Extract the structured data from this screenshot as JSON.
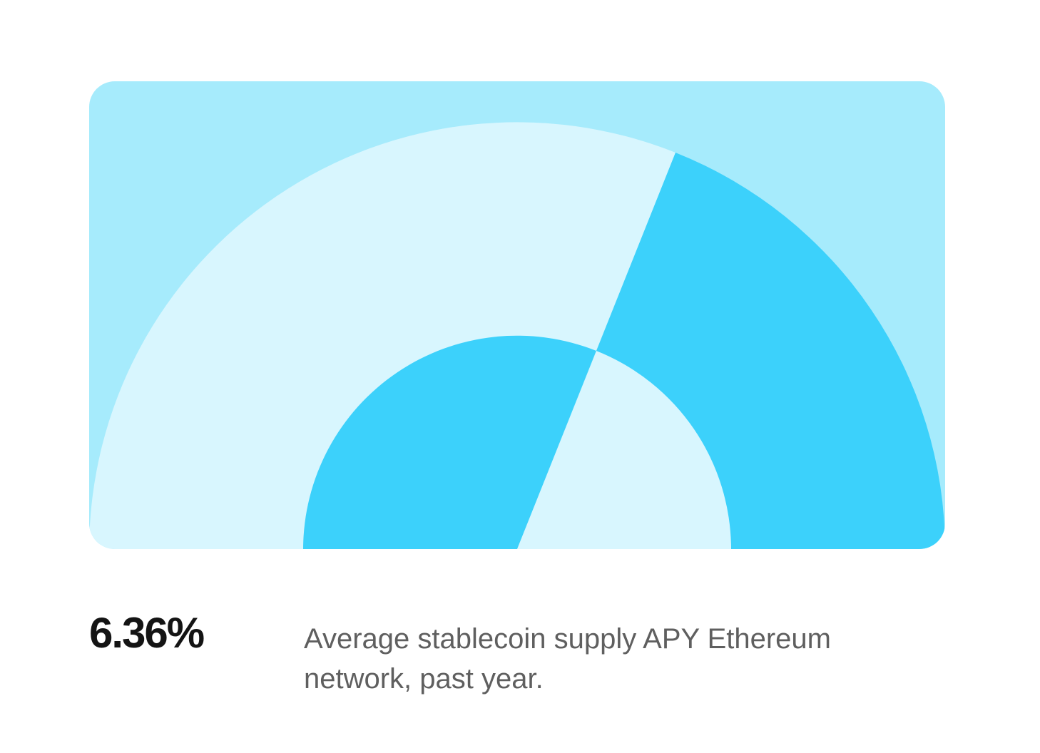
{
  "colors": {
    "card_background": "#A6EBFC",
    "light_segment": "#D8F6FE",
    "accent_segment": "#3CD1FB",
    "value_text": "#141414",
    "caption_text": "#5F5F5F"
  },
  "stat": {
    "value": "6.36%",
    "caption": "Average stablecoin supply APY Ethereum network, past year."
  }
}
